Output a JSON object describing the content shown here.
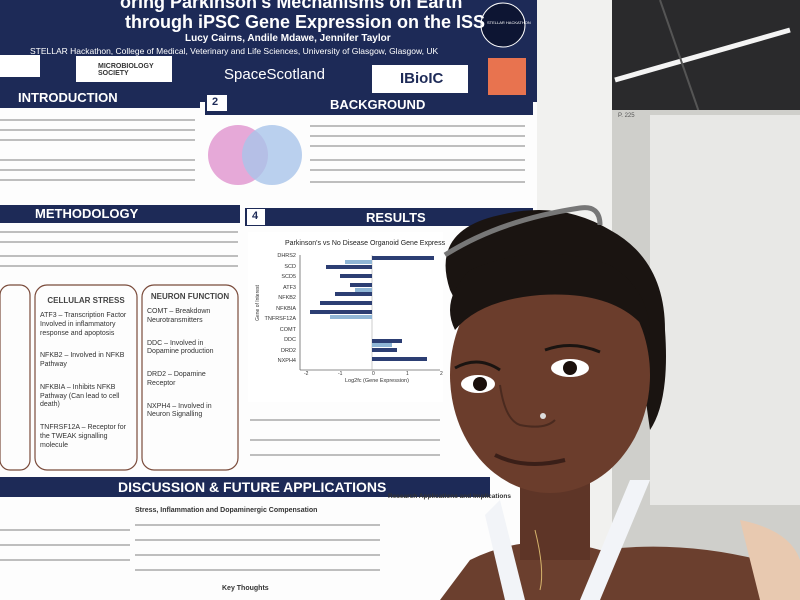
{
  "poster": {
    "title_lines": [
      "oring Parkinson's Mechanisms on Earth",
      "through iPSC Gene Expression on the ISS"
    ],
    "authors": "Lucy Cairns, Andile Mdawe, Jennifer Taylor",
    "affiliation": "STELLAR Hackathon, College of Medical, Veterinary and Life Sciences, University of Glasgow, Glasgow, UK",
    "badge": "STELLAR HACKATHON",
    "logos": [
      "MICROBIOLOGY SOCIETY",
      "SpaceScotland",
      "IBioIC"
    ],
    "sections": {
      "introduction": "INTRODUCTION",
      "background_number": "2",
      "background": "BACKGROUND",
      "methodology": "METHODOLOGY",
      "results_number": "4",
      "results": "RESULTS",
      "discussion": "DISCUSSION & FUTURE APPLICATIONS"
    },
    "chart": {
      "title": "Parkinson's vs No Disease Organoid Gene Express",
      "genes": [
        "DHRS2",
        "SCD",
        "SCD5",
        "ATF3",
        "NFKB2",
        "NFKBIA",
        "TNFRSF12A",
        "COMT",
        "DDC",
        "DRD2",
        "NXPH4"
      ],
      "y_axis": "Gene of Interest",
      "x_axis": "Log2fc (Gene Expression)",
      "x_ticks": [
        "-2",
        "-1",
        "0",
        "1",
        "2"
      ]
    },
    "cellular_stress": {
      "heading": "CELLULAR STRESS",
      "items": [
        "ATF3 – Transcription Factor Involved in inflammatory response and apoptosis",
        "NFKB2 – Involved in NFKB Pathway",
        "NFKBIA – Inhibits NFKB Pathway (Can lead to cell death)",
        "TNFRSF12A – Receptor for the TWEAK signalling molecule"
      ]
    },
    "neuron_function": {
      "heading": "NEURON FUNCTION",
      "items": [
        "COMT – Breakdown Neurotransmitters",
        "DDC – Involved in Dopamine production",
        "DRD2 – Dopamine Receptor",
        "NXPH4 – Involved in Neuron Signalling"
      ]
    },
    "discussion_headings": [
      "Stress, Inflammation and Dopaminergic Compensation",
      "Research Applications and Implications",
      "Key Thoughts"
    ]
  },
  "board_label": "P. 225"
}
